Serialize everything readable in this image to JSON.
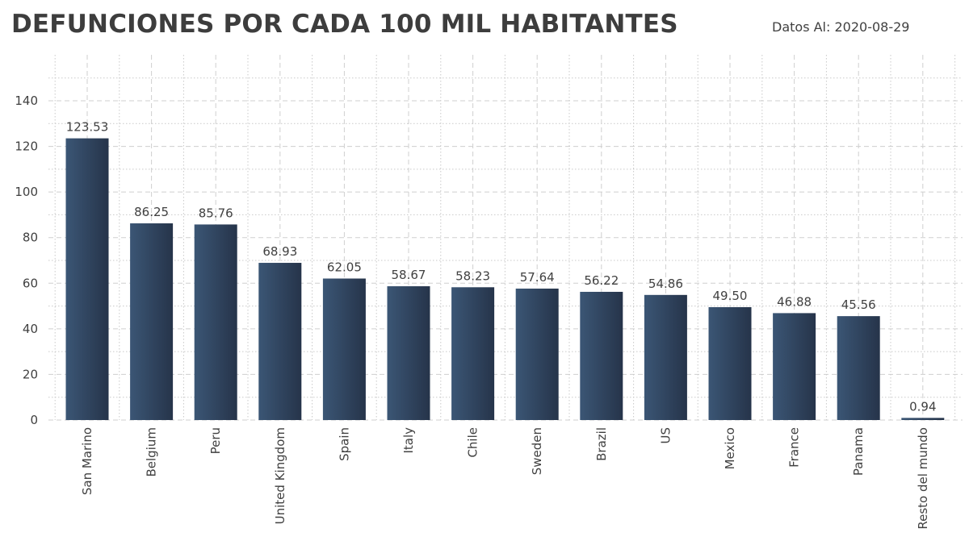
{
  "header": {
    "title": "DEFUNCIONES POR CADA 100 MIL HABITANTES",
    "date_note": "Datos Al: 2020-08-29"
  },
  "chart_data": {
    "type": "bar",
    "title": "DEFUNCIONES POR CADA 100 MIL HABITANTES",
    "xlabel": "",
    "ylabel": "",
    "categories": [
      "San Marino",
      "Belgium",
      "Peru",
      "United Kingdom",
      "Spain",
      "Italy",
      "Chile",
      "Sweden",
      "Brazil",
      "US",
      "Mexico",
      "France",
      "Panama",
      "Resto del mundo"
    ],
    "values": [
      123.53,
      86.25,
      85.76,
      68.93,
      62.05,
      58.67,
      58.23,
      57.64,
      56.22,
      54.86,
      49.5,
      46.88,
      45.56,
      0.94
    ],
    "value_labels": [
      "123.53",
      "86.25",
      "85.76",
      "68.93",
      "62.05",
      "58.67",
      "58.23",
      "57.64",
      "56.22",
      "54.86",
      "49.50",
      "46.88",
      "45.56",
      "0.94"
    ],
    "ylim": [
      0,
      150
    ],
    "yticks": [
      0,
      20,
      40,
      60,
      80,
      100,
      120,
      140
    ],
    "grid": true,
    "bar_color_light": "#3b5675",
    "bar_color_dark": "#26344a"
  }
}
